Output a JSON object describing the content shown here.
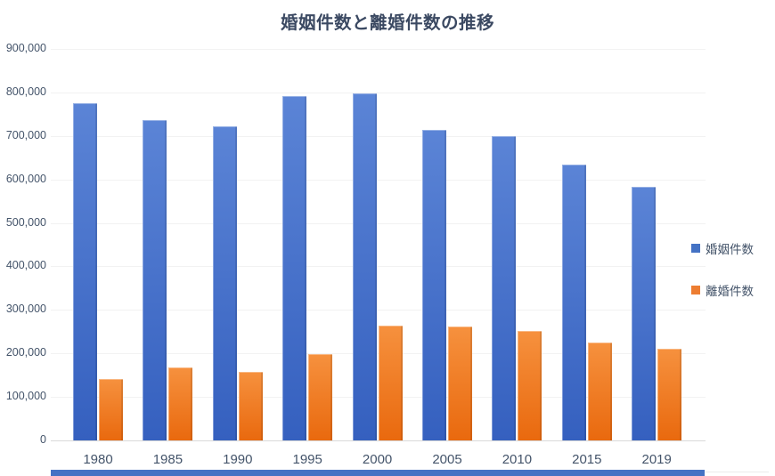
{
  "colors": {
    "background": "#ffffff",
    "title_text": "#3b4962",
    "axis_text": "#44546a",
    "gridline": "#f2f2f2",
    "axis_line": "#d9d9d9",
    "bottom_strip": "#4472c4"
  },
  "chart_data": {
    "type": "bar",
    "title": "婚姻件数と離婚件数の推移",
    "categories": [
      "1980",
      "1985",
      "1990",
      "1995",
      "2000",
      "2005",
      "2010",
      "2015",
      "2019"
    ],
    "series": [
      {
        "key": "marriage",
        "name": "婚姻件数",
        "color": "#4472c4",
        "color_top": "#5b84d6",
        "color_bottom": "#3560bf",
        "values": [
          775000,
          736000,
          722000,
          792000,
          798000,
          714000,
          700000,
          635000,
          583000
        ]
      },
      {
        "key": "divorce",
        "name": "離婚件数",
        "color": "#ed7d31",
        "color_top": "#f6913e",
        "color_bottom": "#e9690e",
        "values": [
          142000,
          167000,
          158000,
          199000,
          264000,
          262000,
          251000,
          226000,
          210000
        ]
      }
    ],
    "xlabel": "",
    "ylabel": "",
    "ylim": [
      0,
      900000
    ],
    "y_tick_step": 100000,
    "y_tick_labels": [
      "0",
      "100,000",
      "200,000",
      "300,000",
      "400,000",
      "500,000",
      "600,000",
      "700,000",
      "800,000",
      "900,000"
    ],
    "grid": true,
    "legend_position": "right"
  }
}
